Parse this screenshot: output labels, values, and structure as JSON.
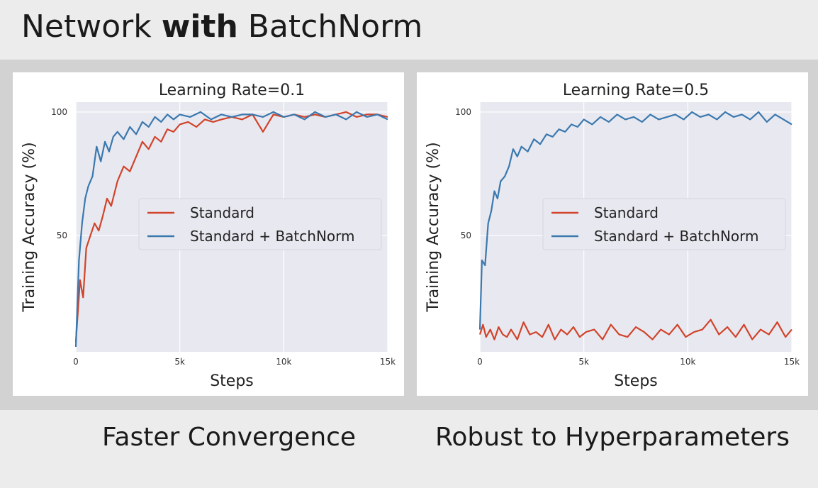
{
  "slide": {
    "title_prefix": "Network ",
    "title_bold": "with",
    "title_suffix": " BatchNorm",
    "caption_left": "Faster Convergence",
    "caption_right": "Robust to Hyperparameters"
  },
  "colors": {
    "standard": "#d1432a",
    "batchnorm": "#3a78ae",
    "plot_bg": "#e8e9f0",
    "grid": "#ffffff"
  },
  "chart_data": [
    {
      "type": "line",
      "title": "Learning Rate=0.1",
      "xlabel": "Steps",
      "ylabel": "Training Accuracy (%)",
      "xlim": [
        0,
        15000
      ],
      "ylim": [
        3,
        104
      ],
      "x_ticks": [
        {
          "value": 0,
          "label": "0"
        },
        {
          "value": 5000,
          "label": "5k"
        },
        {
          "value": 10000,
          "label": "10k"
        },
        {
          "value": 15000,
          "label": "15k"
        }
      ],
      "y_ticks": [
        {
          "value": 50,
          "label": "50"
        },
        {
          "value": 100,
          "label": "100"
        }
      ],
      "grid": true,
      "legend_position": "center-right",
      "series": [
        {
          "name": "Standard",
          "color": "#d1432a",
          "x": [
            0,
            200,
            350,
            500,
            700,
            900,
            1100,
            1300,
            1500,
            1700,
            2000,
            2300,
            2600,
            2900,
            3200,
            3500,
            3800,
            4100,
            4400,
            4700,
            5000,
            5400,
            5800,
            6200,
            6600,
            7000,
            7500,
            8000,
            8500,
            9000,
            9500,
            10000,
            10500,
            11000,
            11500,
            12000,
            12500,
            13000,
            13500,
            14000,
            14500,
            15000
          ],
          "y": [
            7,
            32,
            25,
            45,
            50,
            55,
            52,
            58,
            65,
            62,
            72,
            78,
            76,
            82,
            88,
            85,
            90,
            88,
            93,
            92,
            95,
            96,
            94,
            97,
            96,
            97,
            98,
            97,
            99,
            92,
            99,
            98,
            99,
            98,
            99,
            98,
            99,
            100,
            98,
            99,
            99,
            98
          ]
        },
        {
          "name": "Standard + BatchNorm",
          "color": "#3a78ae",
          "x": [
            0,
            150,
            300,
            450,
            600,
            800,
            1000,
            1200,
            1400,
            1600,
            1800,
            2000,
            2300,
            2600,
            2900,
            3200,
            3500,
            3800,
            4100,
            4400,
            4700,
            5000,
            5500,
            6000,
            6500,
            7000,
            7500,
            8000,
            8500,
            9000,
            9500,
            10000,
            10500,
            11000,
            11500,
            12000,
            12500,
            13000,
            13500,
            14000,
            14500,
            15000
          ],
          "y": [
            5,
            40,
            55,
            65,
            70,
            74,
            86,
            80,
            88,
            84,
            90,
            92,
            89,
            94,
            91,
            96,
            94,
            98,
            96,
            99,
            97,
            99,
            98,
            100,
            97,
            99,
            98,
            99,
            99,
            98,
            100,
            98,
            99,
            97,
            100,
            98,
            99,
            97,
            100,
            98,
            99,
            97
          ]
        }
      ]
    },
    {
      "type": "line",
      "title": "Learning Rate=0.5",
      "xlabel": "Steps",
      "ylabel": "Training Accuracy (%)",
      "xlim": [
        0,
        15000
      ],
      "ylim": [
        3,
        104
      ],
      "x_ticks": [
        {
          "value": 0,
          "label": "0"
        },
        {
          "value": 5000,
          "label": "5k"
        },
        {
          "value": 10000,
          "label": "10k"
        },
        {
          "value": 15000,
          "label": "15k"
        }
      ],
      "y_ticks": [
        {
          "value": 50,
          "label": "50"
        },
        {
          "value": 100,
          "label": "100"
        }
      ],
      "grid": true,
      "legend_position": "center-right",
      "series": [
        {
          "name": "Standard",
          "color": "#d1432a",
          "x": [
            0,
            150,
            300,
            500,
            700,
            900,
            1100,
            1300,
            1500,
            1800,
            2100,
            2400,
            2700,
            3000,
            3300,
            3600,
            3900,
            4200,
            4500,
            4800,
            5100,
            5500,
            5900,
            6300,
            6700,
            7100,
            7500,
            7900,
            8300,
            8700,
            9100,
            9500,
            9900,
            10300,
            10700,
            11100,
            11500,
            11900,
            12300,
            12700,
            13100,
            13500,
            13900,
            14300,
            14700,
            15000
          ],
          "y": [
            10,
            14,
            9,
            12,
            8,
            13,
            10,
            9,
            12,
            8,
            15,
            10,
            11,
            9,
            14,
            8,
            12,
            10,
            13,
            9,
            11,
            12,
            8,
            14,
            10,
            9,
            13,
            11,
            8,
            12,
            10,
            14,
            9,
            11,
            12,
            16,
            10,
            13,
            9,
            14,
            8,
            12,
            10,
            15,
            9,
            12
          ]
        },
        {
          "name": "Standard + BatchNorm",
          "color": "#3a78ae",
          "x": [
            0,
            100,
            250,
            400,
            550,
            700,
            850,
            1000,
            1200,
            1400,
            1600,
            1800,
            2000,
            2300,
            2600,
            2900,
            3200,
            3500,
            3800,
            4100,
            4400,
            4700,
            5000,
            5400,
            5800,
            6200,
            6600,
            7000,
            7400,
            7800,
            8200,
            8600,
            9000,
            9400,
            9800,
            10200,
            10600,
            11000,
            11400,
            11800,
            12200,
            12600,
            13000,
            13400,
            13800,
            14200,
            14600,
            15000
          ],
          "y": [
            12,
            40,
            38,
            55,
            60,
            68,
            65,
            72,
            74,
            78,
            85,
            82,
            86,
            84,
            89,
            87,
            91,
            90,
            93,
            92,
            95,
            94,
            97,
            95,
            98,
            96,
            99,
            97,
            98,
            96,
            99,
            97,
            98,
            99,
            97,
            100,
            98,
            99,
            97,
            100,
            98,
            99,
            97,
            100,
            96,
            99,
            97,
            95
          ]
        }
      ]
    }
  ]
}
